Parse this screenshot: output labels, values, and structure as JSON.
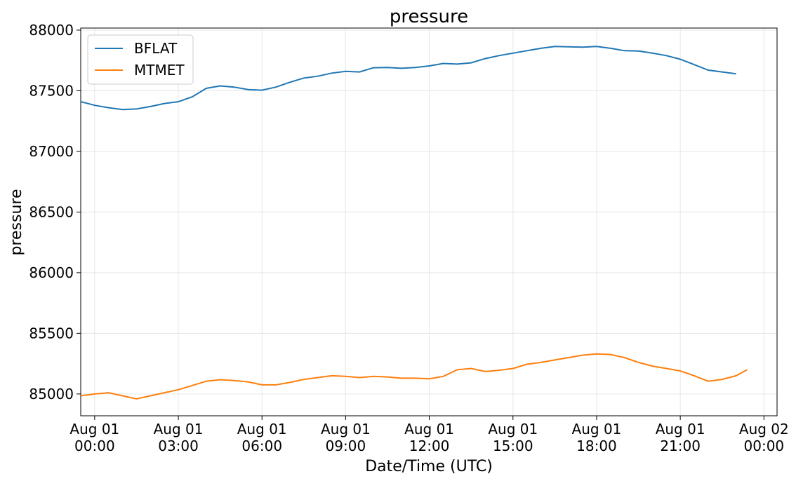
{
  "chart_data": {
    "type": "line",
    "title": "pressure",
    "xlabel": "Date/Time (UTC)",
    "ylabel": "pressure",
    "xlim": [
      -0.5,
      24.47
    ],
    "ylim": [
      84820,
      88017
    ],
    "xticks": [
      {
        "value": 0,
        "label": "Aug 01\n00:00"
      },
      {
        "value": 3,
        "label": "Aug 01\n03:00"
      },
      {
        "value": 6,
        "label": "Aug 01\n06:00"
      },
      {
        "value": 9,
        "label": "Aug 01\n09:00"
      },
      {
        "value": 12,
        "label": "Aug 01\n12:00"
      },
      {
        "value": 15,
        "label": "Aug 01\n15:00"
      },
      {
        "value": 18,
        "label": "Aug 01\n18:00"
      },
      {
        "value": 21,
        "label": "Aug 01\n21:00"
      },
      {
        "value": 24,
        "label": "Aug 02\n00:00"
      }
    ],
    "yticks": [
      85000,
      85500,
      86000,
      86500,
      87000,
      87500,
      88000
    ],
    "grid": true,
    "legend": "upper left",
    "series": [
      {
        "name": "BFLAT",
        "color": "#1f77b4",
        "x": [
          -0.5,
          0,
          0.5,
          1,
          1.5,
          2,
          2.5,
          3,
          3.5,
          4,
          4.5,
          5,
          5.5,
          6,
          6.5,
          7,
          7.5,
          8,
          8.5,
          9,
          9.5,
          10,
          10.5,
          11,
          11.5,
          12,
          12.5,
          13,
          13.5,
          14,
          14.5,
          15,
          15.5,
          16,
          16.5,
          17,
          17.5,
          18,
          18.5,
          19,
          19.5,
          20,
          20.5,
          21,
          21.5,
          22,
          22.5,
          23
        ],
        "values": [
          87410,
          87380,
          87360,
          87345,
          87350,
          87370,
          87395,
          87410,
          87450,
          87520,
          87540,
          87530,
          87510,
          87505,
          87530,
          87570,
          87605,
          87620,
          87645,
          87660,
          87655,
          87690,
          87692,
          87685,
          87692,
          87705,
          87725,
          87720,
          87730,
          87765,
          87790,
          87810,
          87830,
          87850,
          87865,
          87862,
          87860,
          87865,
          87850,
          87830,
          87828,
          87810,
          87790,
          87760,
          87715,
          87670,
          87655,
          87640
        ]
      },
      {
        "name": "MTMET",
        "color": "#ff7f0e",
        "x": [
          -0.5,
          0,
          0.5,
          1,
          1.5,
          2,
          2.5,
          3,
          3.5,
          4,
          4.5,
          5,
          5.5,
          6,
          6.5,
          7,
          7.5,
          8,
          8.5,
          9,
          9.5,
          10,
          10.5,
          11,
          11.5,
          12,
          12.5,
          13,
          13.5,
          14,
          14.5,
          15,
          15.5,
          16,
          16.5,
          17,
          17.5,
          18,
          18.5,
          19,
          19.5,
          20,
          20.5,
          21,
          21.5,
          22,
          22.5,
          23,
          23.4
        ],
        "values": [
          84985,
          85000,
          85010,
          84985,
          84960,
          84985,
          85010,
          85035,
          85070,
          85105,
          85118,
          85110,
          85100,
          85075,
          85075,
          85095,
          85120,
          85135,
          85150,
          85145,
          85135,
          85145,
          85140,
          85130,
          85130,
          85125,
          85145,
          85200,
          85210,
          85185,
          85195,
          85210,
          85245,
          85260,
          85280,
          85300,
          85320,
          85330,
          85325,
          85300,
          85260,
          85230,
          85210,
          85190,
          85150,
          85105,
          85120,
          85150,
          85200
        ]
      }
    ]
  }
}
